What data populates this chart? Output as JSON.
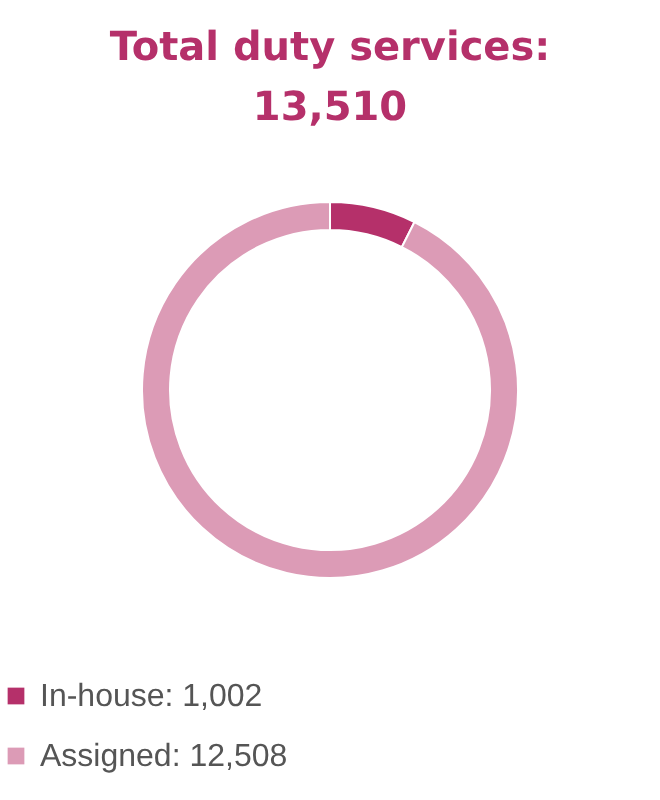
{
  "chart_data": {
    "type": "donut",
    "title": "Total duty services:",
    "subtitle": "13,510",
    "categories": [
      "In-house",
      "Assigned"
    ],
    "values": [
      1002,
      12508
    ],
    "value_labels": [
      "1,002",
      "12,508"
    ],
    "colors": [
      "#b5306a",
      "#dc9bb6"
    ],
    "legend": "bottom"
  }
}
